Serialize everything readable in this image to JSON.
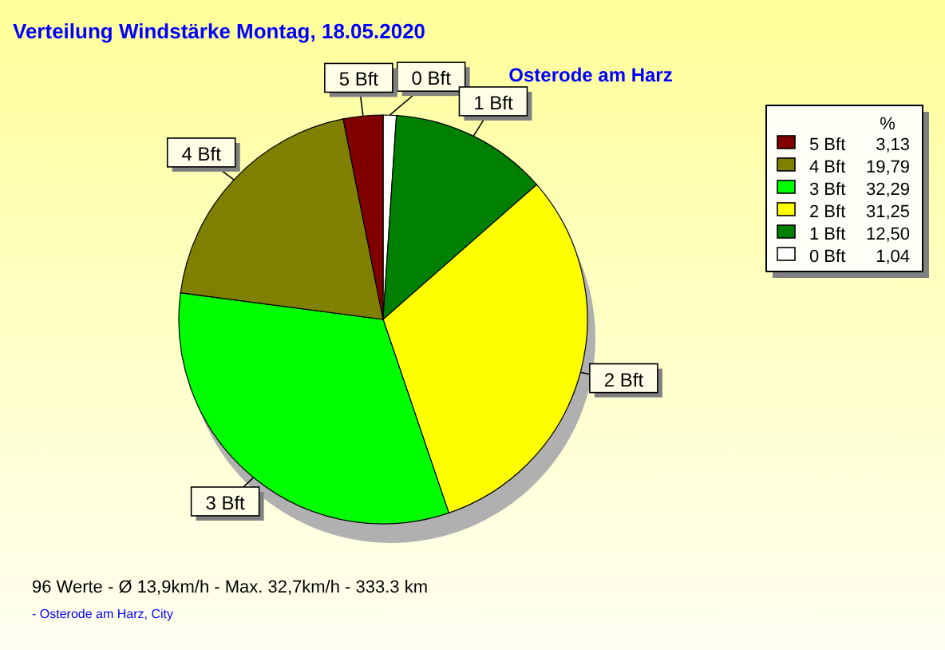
{
  "chart_data": {
    "type": "pie",
    "title": "Verteilung Windstärke  Montag, 18.05.2020",
    "subtitle": "Osterode am Harz",
    "legend_title": "%",
    "categories": [
      "0 Bft",
      "1 Bft",
      "2 Bft",
      "3 Bft",
      "4 Bft",
      "5 Bft"
    ],
    "values": [
      1.04,
      12.5,
      31.25,
      32.29,
      19.79,
      3.13
    ],
    "value_labels": [
      "1,04",
      "12,50",
      "31,25",
      "32,29",
      "19,79",
      "3,13"
    ],
    "colors": [
      "#ffffff",
      "#008000",
      "#ffff00",
      "#00ff00",
      "#808000",
      "#800000"
    ],
    "legend": "top right",
    "annotations": [
      "96 Werte   -   Ø 13,9km/h  -  Max. 32,7km/h   -   333.3 km",
      "-   Osterode am Harz, City"
    ]
  }
}
